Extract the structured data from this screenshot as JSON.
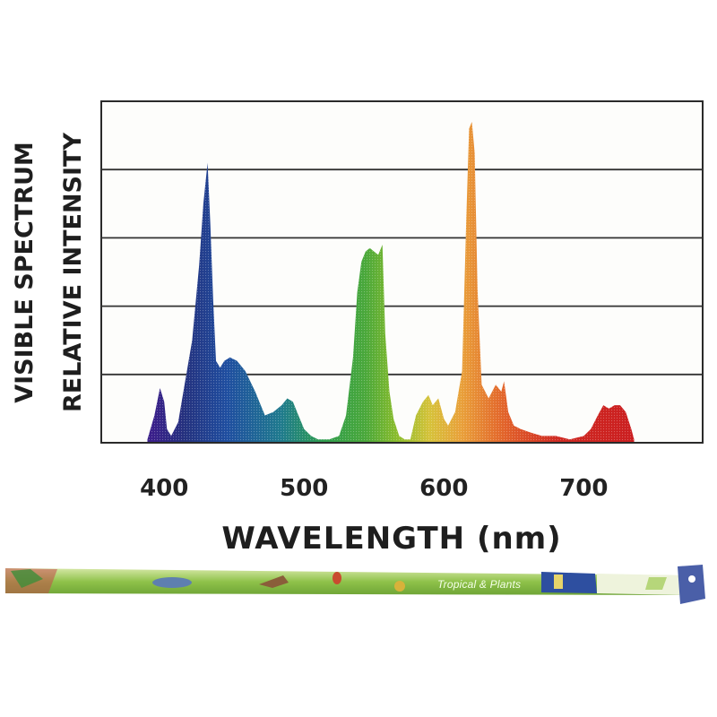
{
  "chart_data": {
    "type": "area",
    "ylabel_lines": [
      "VISIBLE SPECTRUM",
      "RELATIVE INTENSITY"
    ],
    "xlabel": "WAVELENGTH (nm)",
    "x_ticks": [
      400,
      500,
      600,
      700
    ],
    "xlim": [
      355,
      785
    ],
    "ylim": [
      0,
      100
    ],
    "grid": "horizontal",
    "series": [
      {
        "x": [
          388,
          393,
          397,
          400,
          402,
          405,
          410,
          420,
          425,
          428,
          431,
          433,
          435,
          437,
          440,
          443,
          447,
          452,
          458,
          465,
          472,
          478,
          484,
          488,
          492,
          496,
          500,
          505,
          510,
          518,
          525,
          530,
          535,
          538,
          541,
          544,
          547,
          550,
          553,
          556,
          558,
          561,
          564,
          568,
          572,
          576,
          580,
          585,
          589,
          592,
          596,
          600,
          603,
          608,
          613,
          616,
          618,
          620,
          622,
          624,
          627,
          632,
          637,
          641,
          643,
          646,
          650,
          655,
          662,
          670,
          680,
          690,
          700,
          705,
          710,
          714,
          718,
          722,
          726,
          730,
          734,
          736
        ],
        "y": [
          1,
          8,
          16,
          12,
          4,
          2,
          6,
          30,
          52,
          70,
          82,
          64,
          42,
          24,
          22,
          24,
          25,
          24,
          21,
          15,
          8,
          9,
          11,
          13,
          12,
          8,
          4,
          2,
          1,
          1,
          2,
          8,
          25,
          44,
          53,
          56,
          57,
          56,
          55,
          58,
          32,
          15,
          7,
          2,
          1,
          1,
          8,
          12,
          14,
          11,
          13,
          7,
          5,
          9,
          21,
          66,
          92,
          94,
          85,
          45,
          17,
          13,
          17,
          15,
          18,
          9,
          5,
          4,
          3,
          2,
          2,
          1,
          2,
          4,
          8,
          11,
          10,
          11,
          11,
          9,
          4,
          1
        ]
      }
    ]
  },
  "package": {
    "label": "Tropical & Plants"
  }
}
